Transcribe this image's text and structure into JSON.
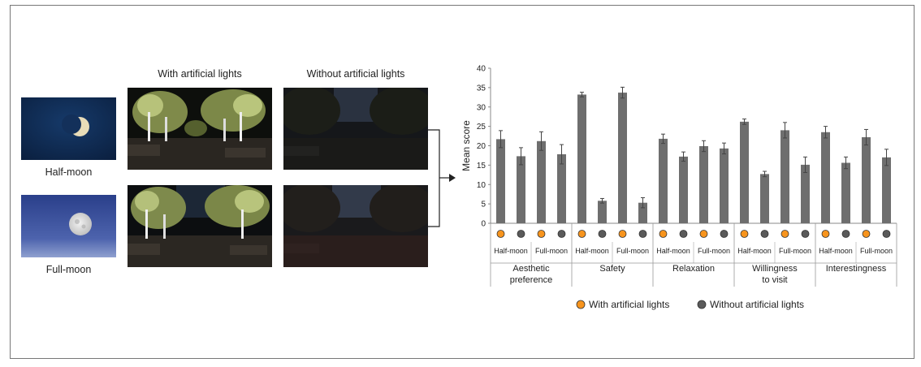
{
  "photos": {
    "col_with": "With artificial lights",
    "col_without": "Without artificial lights",
    "row_half": "Half-moon",
    "row_full": "Full-moon"
  },
  "chart_data": {
    "type": "bar",
    "ylabel": "Mean score",
    "ylim": [
      0,
      40
    ],
    "yticks": [
      0,
      5,
      10,
      15,
      20,
      25,
      30,
      35,
      40
    ],
    "grid": false,
    "groups": [
      {
        "label": [
          "Aesthetic",
          "preference"
        ],
        "half": [
          21.7,
          17.3
        ],
        "full": [
          21.2,
          17.8
        ],
        "err_half": [
          2.2,
          2.2
        ],
        "err_full": [
          2.4,
          2.5
        ]
      },
      {
        "label": [
          "Safety"
        ],
        "half": [
          33.2,
          5.8
        ],
        "full": [
          33.7,
          5.3
        ],
        "err_half": [
          0.6,
          0.6
        ],
        "err_full": [
          1.4,
          1.3
        ]
      },
      {
        "label": [
          "Relaxation"
        ],
        "half": [
          21.8,
          17.2
        ],
        "full": [
          19.9,
          19.3
        ],
        "err_half": [
          1.2,
          1.2
        ],
        "err_full": [
          1.4,
          1.4
        ]
      },
      {
        "label": [
          "Willingness",
          "to visit"
        ],
        "half": [
          26.2,
          12.7
        ],
        "full": [
          24.0,
          15.1
        ],
        "err_half": [
          0.7,
          0.7
        ],
        "err_full": [
          2.0,
          2.0
        ]
      },
      {
        "label": [
          "Interestingness"
        ],
        "half": [
          23.5,
          15.6
        ],
        "full": [
          22.2,
          17.0
        ],
        "err_half": [
          1.5,
          1.5
        ],
        "err_full": [
          2.0,
          2.1
        ]
      }
    ],
    "moon_labels": [
      "Half-moon",
      "Full-moon"
    ],
    "legend": {
      "with": "With artificial lights",
      "without": "Without artificial lights",
      "position": "bottom"
    },
    "colors": {
      "with": "#f7941d",
      "without": "#5a5a5a",
      "bar": "#6e6e6e",
      "error": "#444444"
    }
  }
}
